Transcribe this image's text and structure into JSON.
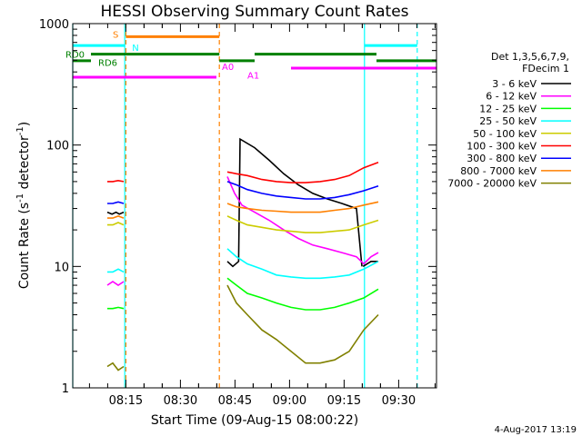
{
  "chart_data": {
    "type": "line",
    "title": "HESSI Observing Summary Count Rates",
    "xlabel": "Start Time (09-Aug-15 08:00:22)",
    "ylabel_main": "Count Rate (s",
    "ylabel_sup1": "-1",
    "ylabel_mid": " detector",
    "ylabel_sup2": "-1",
    "ylabel_end": ")",
    "yscale": "log",
    "ylim": [
      1,
      1000
    ],
    "xlim": [
      0,
      100
    ],
    "x_units": "minutes after 08:00:22",
    "x_ticks": [
      {
        "value": 14.6,
        "label": "08:15"
      },
      {
        "value": 29.6,
        "label": "08:30"
      },
      {
        "value": 44.6,
        "label": "08:45"
      },
      {
        "value": 59.6,
        "label": "09:00"
      },
      {
        "value": 74.6,
        "label": "09:15"
      },
      {
        "value": 89.6,
        "label": "09:30"
      }
    ],
    "y_ticks": [
      {
        "value": 1,
        "label": "1"
      },
      {
        "value": 10,
        "label": "10"
      },
      {
        "value": 100,
        "label": "100"
      },
      {
        "value": 1000,
        "label": "1000"
      }
    ],
    "legend_header": [
      "Det 1,3,5,6,7,9,",
      "FDecim 1"
    ],
    "legend_position": "right",
    "series": [
      {
        "name": "3 - 6 keV",
        "color": "#000000",
        "segments": [
          {
            "x": [
              9.5,
              10.8,
              11.9,
              12.8,
              14.0
            ],
            "y": [
              28,
              27,
              28,
              27,
              28
            ]
          },
          {
            "x": [
              42.5,
              44.0,
              45.6,
              46.0,
              50,
              54,
              58,
              62,
              66,
              70,
              74,
              78,
              79.5
            ],
            "y": [
              11,
              10,
              11,
              112,
              95,
              75,
              58,
              47,
              40,
              36,
              33,
              30,
              10
            ]
          },
          {
            "x": [
              79.8,
              82,
              84
            ],
            "y": [
              10,
              11,
              11
            ]
          }
        ]
      },
      {
        "name": "6 - 12 keV",
        "color": "#ff00ff",
        "segments": [
          {
            "x": [
              9.5,
              11,
              12.5,
              14.0
            ],
            "y": [
              7,
              7.5,
              7,
              7.5
            ]
          },
          {
            "x": [
              42.5,
              44.5,
              46.5,
              50,
              54,
              58,
              62,
              66,
              70,
              74,
              78,
              80,
              82,
              84
            ],
            "y": [
              55,
              40,
              32,
              28,
              24,
              20,
              17,
              15,
              14,
              13,
              12,
              10.5,
              12,
              13
            ]
          }
        ]
      },
      {
        "name": "12 - 25 keV",
        "color": "#00ff00",
        "segments": [
          {
            "x": [
              9.5,
              11,
              12.5,
              14.0
            ],
            "y": [
              4.5,
              4.5,
              4.6,
              4.5
            ]
          },
          {
            "x": [
              42.5,
              45,
              48,
              52,
              56,
              60,
              64,
              68,
              72,
              76,
              80,
              84
            ],
            "y": [
              8,
              7,
              6,
              5.5,
              5,
              4.6,
              4.4,
              4.4,
              4.6,
              5,
              5.5,
              6.5
            ]
          }
        ]
      },
      {
        "name": "25 - 50 keV",
        "color": "#00ffff",
        "segments": [
          {
            "x": [
              9.5,
              11,
              12.5,
              14.0
            ],
            "y": [
              9,
              9,
              9.5,
              9
            ]
          },
          {
            "x": [
              42.5,
              45,
              48,
              52,
              56,
              60,
              64,
              68,
              72,
              76,
              80,
              84
            ],
            "y": [
              14,
              12,
              10.5,
              9.5,
              8.5,
              8.2,
              8,
              8,
              8.2,
              8.5,
              9.5,
              11
            ]
          }
        ]
      },
      {
        "name": "50 - 100 keV",
        "color": "#cccc00",
        "segments": [
          {
            "x": [
              9.5,
              11,
              12.5,
              14.0
            ],
            "y": [
              22,
              22,
              23,
              22
            ]
          },
          {
            "x": [
              42.5,
              45,
              48,
              52,
              56,
              60,
              64,
              68,
              72,
              76,
              80,
              84
            ],
            "y": [
              26,
              24,
              22,
              21,
              20,
              19.5,
              19,
              19,
              19.5,
              20,
              22,
              24
            ]
          }
        ]
      },
      {
        "name": "100 - 300 keV",
        "color": "#ff0000",
        "segments": [
          {
            "x": [
              9.5,
              11,
              12.5,
              14.0
            ],
            "y": [
              50,
              50,
              51,
              50
            ]
          },
          {
            "x": [
              42.5,
              45,
              48,
              52,
              56,
              60,
              64,
              68,
              72,
              76,
              80,
              84
            ],
            "y": [
              60,
              58,
              56,
              52,
              50,
              49,
              49,
              50,
              52,
              56,
              65,
              72
            ]
          }
        ]
      },
      {
        "name": "300 - 800 keV",
        "color": "#0000ff",
        "segments": [
          {
            "x": [
              9.5,
              11,
              12.5,
              14.0
            ],
            "y": [
              33,
              33,
              34,
              33
            ]
          },
          {
            "x": [
              42.5,
              45,
              48,
              52,
              56,
              60,
              64,
              68,
              72,
              76,
              80,
              84
            ],
            "y": [
              50,
              47,
              43,
              40,
              38,
              37,
              36,
              36,
              37,
              39,
              42,
              46
            ]
          }
        ]
      },
      {
        "name": "800 - 7000 keV",
        "color": "#ff8000",
        "segments": [
          {
            "x": [
              9.5,
              11,
              12.5,
              14.0
            ],
            "y": [
              25,
              25,
              26,
              25
            ]
          },
          {
            "x": [
              42.5,
              45,
              48,
              52,
              56,
              60,
              64,
              68,
              72,
              76,
              80,
              84
            ],
            "y": [
              33,
              31,
              30,
              29,
              28.5,
              28,
              28,
              28,
              29,
              30,
              32,
              34
            ]
          }
        ]
      },
      {
        "name": "7000 - 20000 keV",
        "color": "#808000",
        "segments": [
          {
            "x": [
              9.5,
              11,
              12.5,
              14.0
            ],
            "y": [
              1.5,
              1.6,
              1.4,
              1.5
            ]
          },
          {
            "x": [
              42.5,
              45,
              48,
              52,
              56,
              60,
              64,
              68,
              72,
              76,
              80,
              84
            ],
            "y": [
              7,
              5,
              4,
              3,
              2.5,
              2,
              1.6,
              1.6,
              1.7,
              2,
              3,
              4
            ]
          }
        ]
      }
    ],
    "vertical_markers": [
      {
        "x": 0.0,
        "color": "#00ffff",
        "style": "solid"
      },
      {
        "x": 14.3,
        "color": "#00ffff",
        "style": "solid"
      },
      {
        "x": 14.6,
        "color": "#ff8000",
        "style": "dashed"
      },
      {
        "x": 40.3,
        "color": "#ff8000",
        "style": "dashed"
      },
      {
        "x": 80.2,
        "color": "#00ffff",
        "style": "solid"
      },
      {
        "x": 94.7,
        "color": "#00ffff",
        "style": "dashed"
      }
    ],
    "state_flags": [
      {
        "label": "S",
        "color": "#ff8000",
        "y": 780,
        "segments": [
          [
            14.6,
            40.3
          ]
        ],
        "label_x": 11.0,
        "label_y": 820
      },
      {
        "label": "N",
        "color": "#00ffff",
        "y": 660,
        "segments": [
          [
            0,
            14.3
          ],
          [
            80.2,
            94.7
          ]
        ],
        "label_x": 16.3,
        "label_y": 640
      },
      {
        "label": "RD0",
        "color": "#008000",
        "y": 560,
        "segments": [
          [
            5.0,
            40.3
          ],
          [
            50.0,
            83.5
          ]
        ],
        "label_x": -2.0,
        "label_y": 560
      },
      {
        "label": "RD6",
        "color": "#008000",
        "y": 495,
        "segments": [
          [
            0,
            5.0
          ],
          [
            40.3,
            50.0
          ],
          [
            83.5,
            100
          ]
        ],
        "label_x": 7.0,
        "label_y": 480
      },
      {
        "label": "A0",
        "color": "#ff00ff",
        "y": 430,
        "segments": [
          [
            60.0,
            100
          ]
        ],
        "label_x": 41.0,
        "label_y": 445
      },
      {
        "label": "A1",
        "color": "#ff00ff",
        "y": 362,
        "segments": [
          [
            0,
            39.5
          ]
        ],
        "label_x": 48.0,
        "label_y": 378
      }
    ]
  },
  "footer_date": "4-Aug-2017 13:19"
}
